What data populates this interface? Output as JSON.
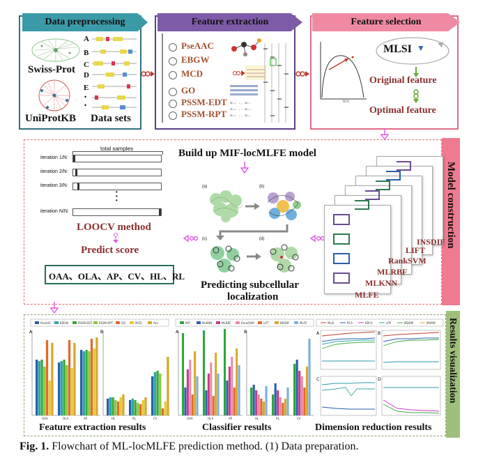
{
  "stages": {
    "preprocessing": {
      "title": "Data preprocessing",
      "swiss": "Swiss-Prot",
      "uniprot": "UniProtKB",
      "datasets": "Data sets",
      "letters": [
        "A",
        "B",
        "C",
        "D",
        "E",
        "•",
        "•"
      ]
    },
    "extraction": {
      "title": "Feature extraction",
      "features": [
        "PseAAC",
        "EBGW",
        "MCD",
        "GO",
        "PSSM-EDT",
        "PSSM-RPT"
      ]
    },
    "selection": {
      "title": "Feature selection",
      "mlsi": "MLSI",
      "original": "Original feature",
      "optimal": "Optimal feature",
      "curve_label": "ROC"
    },
    "model": {
      "label": "Model construction",
      "build_title": "Build up MIF-locMLFE model",
      "total_samples": "total samples",
      "iterations": [
        "iteration 1/N:",
        "iteration 2/N:",
        "iteration 3/N:",
        "iteration N/N:"
      ],
      "loocv": "LOOCV method",
      "predict": "Predict score",
      "metrics": "OAA、OLA、AP、CV、HL、RL",
      "predicting1": "Predicting subcellular",
      "predicting2": "localization",
      "panel_labels": [
        "(a)",
        "(b)",
        "(c)",
        "(d)"
      ],
      "classifiers": [
        "MLFE",
        "MLKNN",
        "MLRBF",
        "RankSVM",
        "LIFT",
        "INSDIF"
      ]
    },
    "results": {
      "label": "Results visualization",
      "captions": [
        "Feature extraction results",
        "Classifier results",
        "Dimension reduction results"
      ],
      "panel_letters": [
        "A",
        "B",
        "A",
        "B",
        "A",
        "B",
        "C",
        "D"
      ],
      "fe_legend": [
        "PseAAC",
        "EBGW",
        "PSSM-EDT",
        "PSSM-RPT",
        "GO",
        "MCD",
        "ALL"
      ],
      "clf_legend": [
        "MLFE",
        "MLKNN",
        "MLRBF",
        "RankSVM",
        "LIFT",
        "INSDIF",
        "MIF"
      ],
      "dr_legend": [
        "MLSI",
        "PCA",
        "KPCA",
        "LPP",
        "MDDM",
        "MVMD"
      ],
      "fe_ticks_a": [
        "OAA",
        "OLA",
        "AP"
      ],
      "fe_ticks_b": [
        "HL",
        "RL",
        "CV"
      ],
      "clf_ticks_a": [
        "OAA",
        "OLA",
        "AP"
      ],
      "clf_ticks_b": [
        "HL",
        "RL",
        "CV"
      ]
    }
  },
  "caption": {
    "prefix": "Fig. 1.",
    "text": " Flowchart of ML-locMLFE prediction method. (1) Data preparation."
  },
  "colors": {
    "teal": "#2f8f8f",
    "purple": "#6b4e94",
    "pink": "#e8708e",
    "red": "#c0392b",
    "maroon": "#8b2f2f",
    "green_border": "#7aa06a",
    "magenta_arrow": "#e060e0"
  }
}
